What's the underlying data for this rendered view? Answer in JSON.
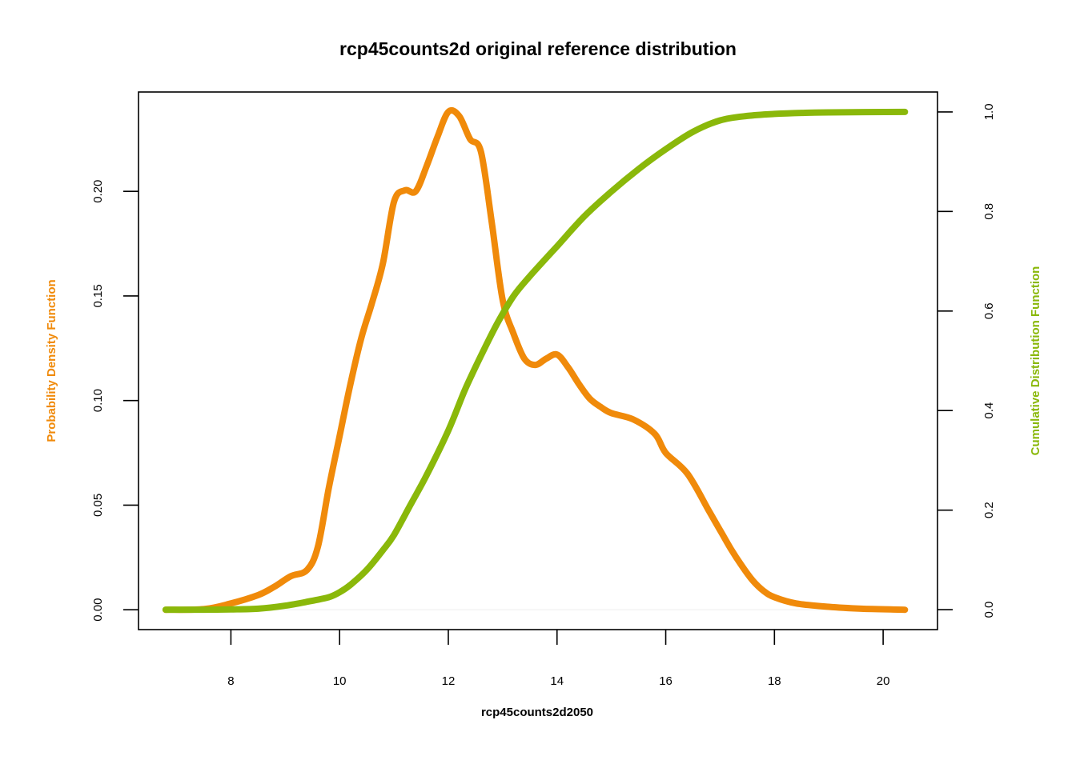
{
  "chart_data": {
    "type": "line",
    "title": "rcp45counts2d original reference distribution",
    "xlabel": "rcp45counts2d2050",
    "ylabel_left": "Probability Density Function",
    "ylabel_right": "Cumulative Distribution Function",
    "xlim": [
      6.3,
      21
    ],
    "ylim_left": [
      -0.0095,
      0.2475
    ],
    "ylim_right": [
      -0.04,
      1.04
    ],
    "x_ticks": [
      8,
      10,
      12,
      14,
      16,
      18,
      20
    ],
    "y_ticks_left": [
      0.0,
      0.05,
      0.1,
      0.15,
      0.2
    ],
    "y_ticks_right": [
      0.0,
      0.2,
      0.4,
      0.6,
      0.8,
      1.0
    ],
    "x_tick_labels": [
      "8",
      "10",
      "12",
      "14",
      "16",
      "18",
      "20"
    ],
    "y_tick_labels_left": [
      "0.00",
      "0.05",
      "0.10",
      "0.15",
      "0.20"
    ],
    "y_tick_labels_right": [
      "0.0",
      "0.2",
      "0.4",
      "0.6",
      "0.8",
      "1.0"
    ],
    "grid": false,
    "colors": {
      "pdf": "#F08A0A",
      "cdf": "#8AB80A"
    },
    "series": [
      {
        "axis": "left",
        "x": [
          6.8,
          7.5,
          8.0,
          8.5,
          8.8,
          9.1,
          9.4,
          9.6,
          9.8,
          10.0,
          10.2,
          10.4,
          10.6,
          10.8,
          11.0,
          11.2,
          11.4,
          11.6,
          11.8,
          12.0,
          12.2,
          12.4,
          12.6,
          12.8,
          13.0,
          13.2,
          13.4,
          13.6,
          13.8,
          14.0,
          14.2,
          14.4,
          14.6,
          14.8,
          15.0,
          15.4,
          15.8,
          16.0,
          16.4,
          16.8,
          17.0,
          17.2,
          17.4,
          17.6,
          17.8,
          18.0,
          18.4,
          19.0,
          19.6,
          20.4
        ],
        "y": [
          0.0,
          0.0003,
          0.003,
          0.007,
          0.011,
          0.016,
          0.019,
          0.03,
          0.058,
          0.083,
          0.108,
          0.13,
          0.147,
          0.166,
          0.195,
          0.2005,
          0.2,
          0.212,
          0.226,
          0.238,
          0.236,
          0.225,
          0.219,
          0.185,
          0.148,
          0.132,
          0.12,
          0.117,
          0.12,
          0.122,
          0.116,
          0.108,
          0.101,
          0.097,
          0.094,
          0.091,
          0.084,
          0.075,
          0.065,
          0.047,
          0.038,
          0.029,
          0.021,
          0.014,
          0.009,
          0.006,
          0.003,
          0.0014,
          0.0005,
          0.0
        ]
      },
      {
        "axis": "right",
        "x": [
          6.8,
          7.5,
          8.0,
          8.5,
          9.0,
          9.5,
          9.8,
          10.0,
          10.2,
          10.5,
          10.8,
          11.0,
          11.3,
          11.6,
          12.0,
          12.3,
          12.6,
          12.9,
          13.2,
          13.5,
          14.0,
          14.5,
          15.0,
          15.5,
          16.0,
          16.5,
          17.0,
          17.5,
          18.0,
          18.5,
          19.0,
          20.4
        ],
        "y": [
          0.0,
          0.0,
          0.0005,
          0.002,
          0.008,
          0.018,
          0.025,
          0.035,
          0.05,
          0.08,
          0.12,
          0.15,
          0.21,
          0.27,
          0.36,
          0.44,
          0.51,
          0.575,
          0.63,
          0.67,
          0.73,
          0.79,
          0.84,
          0.885,
          0.925,
          0.96,
          0.983,
          0.992,
          0.996,
          0.998,
          0.999,
          1.0
        ]
      }
    ]
  }
}
